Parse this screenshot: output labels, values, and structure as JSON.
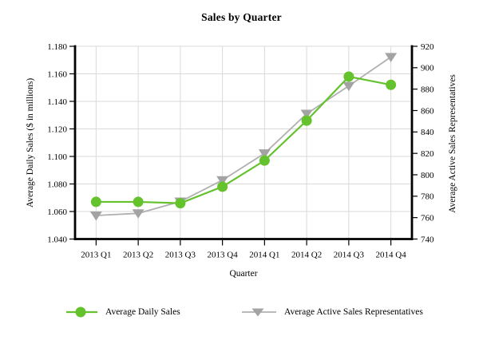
{
  "title": "Sales by Quarter",
  "axes": {
    "x": {
      "label": "Quarter",
      "categories": [
        "2013 Q1",
        "2013 Q2",
        "2013 Q3",
        "2013 Q4",
        "2014 Q1",
        "2014 Q2",
        "2014 Q3",
        "2014 Q4"
      ]
    },
    "y_left": {
      "label": "Average Daily Sales ($ in millions)",
      "tick_labels": [
        "1.180",
        "1.160",
        "1.140",
        "1.120",
        "1.100",
        "1.080",
        "1.060",
        "1.040"
      ]
    },
    "y_right": {
      "label": "Average Active Sales Representatives",
      "tick_labels": [
        "920",
        "900",
        "880",
        "860",
        "840",
        "820",
        "800",
        "780",
        "760",
        "740"
      ]
    }
  },
  "chart_data": {
    "type": "line",
    "title": "Sales by Quarter",
    "xlabel": "Quarter",
    "ylabel_left": "Average Daily Sales ($ in millions)",
    "ylabel_right": "Average Active Sales Representatives",
    "categories": [
      "2013 Q1",
      "2013 Q2",
      "2013 Q3",
      "2013 Q4",
      "2014 Q1",
      "2014 Q2",
      "2014 Q3",
      "2014 Q4"
    ],
    "ylim_left": [
      1.04,
      1.18
    ],
    "ylim_right": [
      740,
      920
    ],
    "ytick_step_left": 0.02,
    "ytick_step_right": 20,
    "grid": true,
    "legend_position": "bottom",
    "series": [
      {
        "name": "Average Daily Sales",
        "axis": "left",
        "marker": "circle",
        "color": "#64c22d",
        "line_color": "#64c22d",
        "values": [
          1.067,
          1.067,
          1.066,
          1.078,
          1.097,
          1.126,
          1.158,
          1.152
        ]
      },
      {
        "name": "Average Active Sales Representatives",
        "axis": "right",
        "marker": "triangle-down",
        "color": "#a3a3a3",
        "line_color": "#b0b0b0",
        "values": [
          762,
          764,
          775,
          795,
          820,
          857,
          883,
          910
        ]
      }
    ]
  },
  "style_colors": {
    "gridline": "#d9d9d9",
    "axis": "#000000",
    "text": "#000000"
  }
}
